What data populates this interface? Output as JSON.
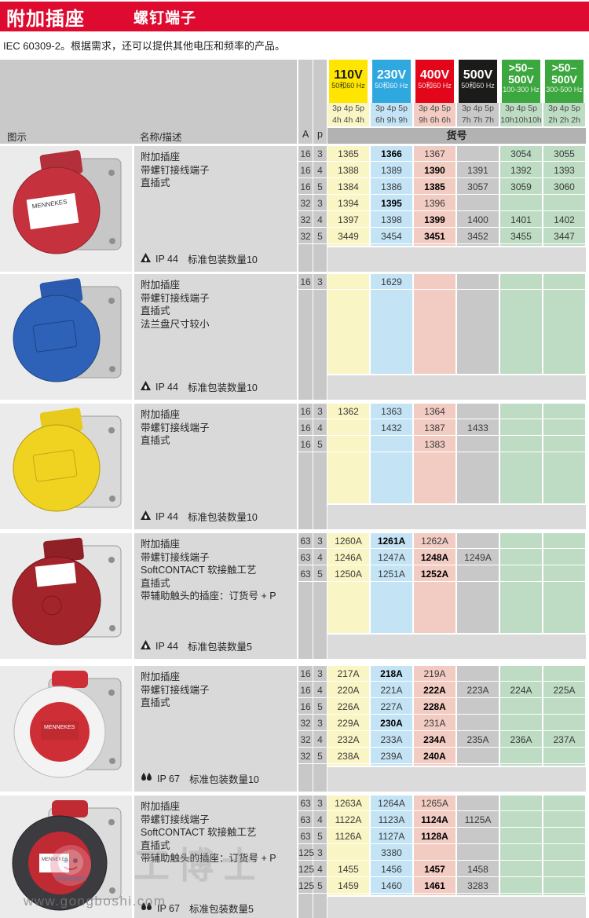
{
  "page": {
    "title": "附加插座",
    "subtitle": "螺钉端子",
    "intro": "IEC 60309-2。根据需求，还可以提供其他电压和频率的产品。"
  },
  "header": {
    "image_col": "图示",
    "name_col": "名称/描述",
    "amp_col": "A",
    "pole_col": "p",
    "article_label": "货号"
  },
  "voltage_columns": [
    {
      "line1": "110V",
      "line2": "",
      "freq": "50和60 Hz",
      "poles": "3p 4p 5p",
      "hours": "4h 4h 4h",
      "bg": "#FFE500",
      "fg": "#1A1A1A",
      "freq_fg": "#3A3A1A",
      "tint": "#FAF5C5"
    },
    {
      "line1": "230V",
      "line2": "",
      "freq": "50和60 Hz",
      "poles": "3p 4p 5p",
      "hours": "6h 9h 9h",
      "bg": "#2FA8DF",
      "fg": "#FFFFFF",
      "freq_fg": "#E8F6FF",
      "tint": "#C4E4F6"
    },
    {
      "line1": "400V",
      "line2": "",
      "freq": "50和60 Hz",
      "poles": "3p 4p 5p",
      "hours": "9h 6h 6h",
      "bg": "#E30519",
      "fg": "#FFFFFF",
      "freq_fg": "#FFDDDD",
      "tint": "#F2CCC3"
    },
    {
      "line1": "500V",
      "line2": "",
      "freq": "50和60 Hz",
      "poles": "3p 4p 5p",
      "hours": "7h 7h 7h",
      "bg": "#1B1B19",
      "fg": "#FFFFFF",
      "freq_fg": "#DDDDDD",
      "tint": "#C8C8C8"
    },
    {
      "line1": ">50–",
      "line2": "500V",
      "freq": "100-300 Hz",
      "poles": "3p 4p 5p",
      "hours": "10h10h10h",
      "bg": "#3DA73F",
      "fg": "#FFFFFF",
      "freq_fg": "#E2F2E2",
      "tint": "#BEDCC3"
    },
    {
      "line1": ">50–",
      "line2": "500V",
      "freq": "300-500 Hz",
      "poles": "3p 4p 5p",
      "hours": "2h 2h 2h",
      "bg": "#3DA73F",
      "fg": "#FFFFFF",
      "freq_fg": "#E2F2E2",
      "tint": "#BEDCC3"
    }
  ],
  "products": [
    {
      "photo": "red-flap-panel-socket-photo",
      "desc": [
        "附加插座",
        "带螺钉接线端子",
        "直插式"
      ],
      "ip_icon": "splash-proof-triangle-icon",
      "ip": "IP 44",
      "pack": "标准包装数量10",
      "rows": [
        {
          "a": "16",
          "p": "3",
          "cells": [
            "1365",
            {
              "v": "1366",
              "b": 1
            },
            "1367",
            null,
            "3054",
            "3055"
          ]
        },
        {
          "a": "16",
          "p": "4",
          "cells": [
            "1388",
            "1389",
            {
              "v": "1390",
              "b": 1
            },
            "1391",
            "1392",
            "1393"
          ]
        },
        {
          "a": "16",
          "p": "5",
          "cells": [
            "1384",
            "1386",
            {
              "v": "1385",
              "b": 1
            },
            "3057",
            "3059",
            "3060"
          ]
        },
        {
          "a": "32",
          "p": "3",
          "cells": [
            "1394",
            {
              "v": "1395",
              "b": 1
            },
            "1396",
            null,
            null,
            null
          ]
        },
        {
          "a": "32",
          "p": "4",
          "cells": [
            "1397",
            "1398",
            {
              "v": "1399",
              "b": 1
            },
            "1400",
            "1401",
            "1402"
          ]
        },
        {
          "a": "32",
          "p": "5",
          "cells": [
            "3449",
            "3454",
            {
              "v": "3451",
              "b": 1
            },
            "3452",
            "3455",
            "3447"
          ]
        }
      ]
    },
    {
      "photo": "blue-flap-panel-socket-photo",
      "desc": [
        "附加插座",
        "带螺钉接线端子",
        "直插式",
        "法兰盘尺寸较小"
      ],
      "ip_icon": "splash-proof-triangle-icon",
      "ip": "IP 44",
      "pack": "标准包装数量10",
      "rows": [
        {
          "a": "16",
          "p": "3",
          "cells": [
            null,
            "1629",
            null,
            null,
            null,
            null
          ]
        }
      ]
    },
    {
      "photo": "yellow-flap-panel-socket-photo",
      "desc": [
        "附加插座",
        "带螺钉接线端子",
        "直插式"
      ],
      "ip_icon": "splash-proof-triangle-icon",
      "ip": "IP 44",
      "pack": "标准包装数量10",
      "rows": [
        {
          "a": "16",
          "p": "3",
          "cells": [
            "1362",
            "1363",
            "1364",
            null,
            null,
            null
          ]
        },
        {
          "a": "16",
          "p": "4",
          "cells": [
            null,
            "1432",
            "1387",
            "1433",
            null,
            null
          ]
        },
        {
          "a": "16",
          "p": "5",
          "cells": [
            null,
            null,
            "1383",
            null,
            null,
            null
          ]
        }
      ]
    },
    {
      "photo": "dark-red-softcontact-socket-photo",
      "desc": [
        "附加插座",
        "带螺钉接线端子",
        "SoftCONTACT 软接触工艺",
        "直插式",
        "带辅助触头的插座：订货号 + P"
      ],
      "ip_icon": "splash-proof-triangle-icon",
      "ip": "IP 44",
      "pack": "标准包装数量5",
      "rows": [
        {
          "a": "63",
          "p": "3",
          "cells": [
            "1260A",
            {
              "v": "1261A",
              "b": 1
            },
            "1262A",
            null,
            null,
            null
          ]
        },
        {
          "a": "63",
          "p": "4",
          "cells": [
            "1246A",
            "1247A",
            {
              "v": "1248A",
              "b": 1
            },
            "1249A",
            null,
            null
          ]
        },
        {
          "a": "63",
          "p": "5",
          "cells": [
            "1250A",
            "1251A",
            {
              "v": "1252A",
              "b": 1
            },
            null,
            null,
            null
          ]
        }
      ]
    },
    {
      "photo": "white-red-ip67-socket-photo",
      "desc": [
        "附加插座",
        "带螺钉接线端子",
        "直插式"
      ],
      "ip_icon": "immersion-drops-icon",
      "ip": "IP 67",
      "pack": "标准包装数量10",
      "rows": [
        {
          "a": "16",
          "p": "3",
          "cells": [
            "217A",
            {
              "v": "218A",
              "b": 1
            },
            "219A",
            null,
            null,
            null
          ]
        },
        {
          "a": "16",
          "p": "4",
          "cells": [
            "220A",
            "221A",
            {
              "v": "222A",
              "b": 1
            },
            "223A",
            "224A",
            "225A"
          ]
        },
        {
          "a": "16",
          "p": "5",
          "cells": [
            "226A",
            "227A",
            {
              "v": "228A",
              "b": 1
            },
            null,
            null,
            null
          ]
        },
        {
          "a": "32",
          "p": "3",
          "cells": [
            "229A",
            {
              "v": "230A",
              "b": 1
            },
            "231A",
            null,
            null,
            null
          ]
        },
        {
          "a": "32",
          "p": "4",
          "cells": [
            "232A",
            "233A",
            {
              "v": "234A",
              "b": 1
            },
            "235A",
            "236A",
            "237A"
          ]
        },
        {
          "a": "32",
          "p": "5",
          "cells": [
            "238A",
            "239A",
            {
              "v": "240A",
              "b": 1
            },
            null,
            null,
            null
          ]
        }
      ]
    },
    {
      "photo": "black-red-ip67-softcontact-socket-photo",
      "desc": [
        "附加插座",
        "带螺钉接线端子",
        "SoftCONTACT 软接触工艺",
        "直插式",
        "带辅助触头的插座：订货号 + P"
      ],
      "ip_icon": "immersion-drops-icon",
      "ip": "IP 67",
      "pack": "标准包装数量5",
      "rows": [
        {
          "a": "63",
          "p": "3",
          "cells": [
            "1263A",
            "1264A",
            "1265A",
            null,
            null,
            null
          ]
        },
        {
          "a": "63",
          "p": "4",
          "cells": [
            "1122A",
            "1123A",
            {
              "v": "1124A",
              "b": 1
            },
            "1125A",
            null,
            null
          ]
        },
        {
          "a": "63",
          "p": "5",
          "cells": [
            "1126A",
            "1127A",
            {
              "v": "1128A",
              "b": 1
            },
            null,
            null,
            null
          ]
        },
        {
          "a": "125",
          "p": "3",
          "cells": [
            null,
            "3380",
            null,
            null,
            null,
            null
          ]
        },
        {
          "a": "125",
          "p": "4",
          "cells": [
            "1455",
            "1456",
            {
              "v": "1457",
              "b": 1
            },
            "1458",
            null,
            null
          ]
        },
        {
          "a": "125",
          "p": "5",
          "cells": [
            "1459",
            "1460",
            {
              "v": "1461",
              "b": 1
            },
            "3283",
            null,
            null
          ]
        }
      ]
    }
  ],
  "watermark": {
    "url": "www.gongboshi.com",
    "brand": "工博士"
  }
}
